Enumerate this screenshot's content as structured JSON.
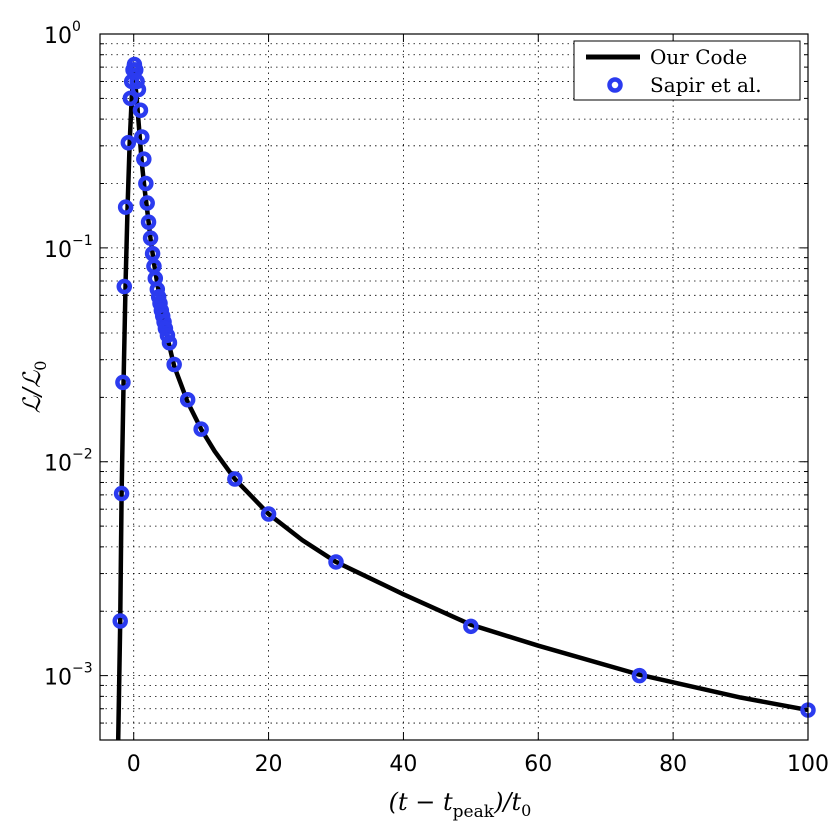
{
  "chart_data": {
    "type": "line",
    "xlabel": "(t − t_peak)/t_0",
    "xlabel_parts": {
      "pre": "(t − t",
      "sub1": "peak",
      "mid": ")/t",
      "sub2": "0"
    },
    "ylabel": "ℒ/ℒ_0",
    "ylabel_parts": {
      "main": "ℒ/ℒ",
      "sub": "0"
    },
    "x_ticks": [
      "0",
      "20",
      "40",
      "60",
      "80",
      "100"
    ],
    "x_tick_values": [
      0,
      20,
      40,
      60,
      80,
      100
    ],
    "y_tick_values": [
      0.001,
      0.01,
      0.1,
      1
    ],
    "y_tick_labels": [
      {
        "base": "10",
        "exp": "−3"
      },
      {
        "base": "10",
        "exp": "−2"
      },
      {
        "base": "10",
        "exp": "−1"
      },
      {
        "base": "10",
        "exp": "0"
      }
    ],
    "xlim": [
      -5,
      100
    ],
    "ylim": [
      0.0005,
      1
    ],
    "y_scale": "log",
    "grid": true,
    "legend_position": "top-right",
    "series": [
      {
        "name": "Our Code",
        "style": "line",
        "color": "#000000",
        "x": [
          -2.3,
          -2.0,
          -1.8,
          -1.5,
          -1.2,
          -0.9,
          -0.6,
          -0.3,
          0.0,
          0.4,
          0.8,
          1.2,
          1.6,
          2.0,
          2.5,
          3.0,
          3.5,
          4.0,
          5.0,
          6.0,
          8.0,
          10.0,
          12.0,
          15.0,
          20.0,
          25.0,
          30.0,
          40.0,
          50.0,
          60.0,
          75.0,
          90.0,
          100.0
        ],
        "y": [
          0.0005,
          0.0018,
          0.007,
          0.024,
          0.07,
          0.16,
          0.31,
          0.5,
          0.68,
          0.52,
          0.36,
          0.25,
          0.19,
          0.15,
          0.11,
          0.085,
          0.068,
          0.056,
          0.038,
          0.028,
          0.019,
          0.0142,
          0.0112,
          0.0083,
          0.0057,
          0.0043,
          0.0034,
          0.0024,
          0.00173,
          0.00138,
          0.00101,
          0.00079,
          0.00069
        ]
      },
      {
        "name": "Sapir et al.",
        "style": "scatter",
        "color": "#2b3bef",
        "x": [
          -2.0,
          -1.8,
          -1.6,
          -1.4,
          -1.2,
          -0.8,
          -0.5,
          -0.3,
          -0.1,
          0.1,
          0.3,
          0.5,
          0.7,
          1.0,
          1.2,
          1.5,
          1.8,
          2.0,
          2.2,
          2.5,
          2.8,
          3.0,
          3.2,
          3.5,
          3.7,
          3.9,
          4.1,
          4.3,
          4.5,
          4.7,
          5.0,
          5.3,
          6.0,
          8.0,
          10.0,
          15.0,
          20.0,
          30.0,
          50.0,
          75.0,
          100.0
        ],
        "y": [
          0.0018,
          0.0071,
          0.0235,
          0.066,
          0.155,
          0.31,
          0.5,
          0.6,
          0.68,
          0.72,
          0.68,
          0.6,
          0.55,
          0.44,
          0.33,
          0.26,
          0.2,
          0.162,
          0.132,
          0.111,
          0.094,
          0.082,
          0.072,
          0.064,
          0.059,
          0.055,
          0.051,
          0.048,
          0.045,
          0.042,
          0.039,
          0.036,
          0.0285,
          0.0195,
          0.0142,
          0.0083,
          0.0057,
          0.0034,
          0.0017,
          0.001,
          0.00069
        ]
      }
    ]
  }
}
